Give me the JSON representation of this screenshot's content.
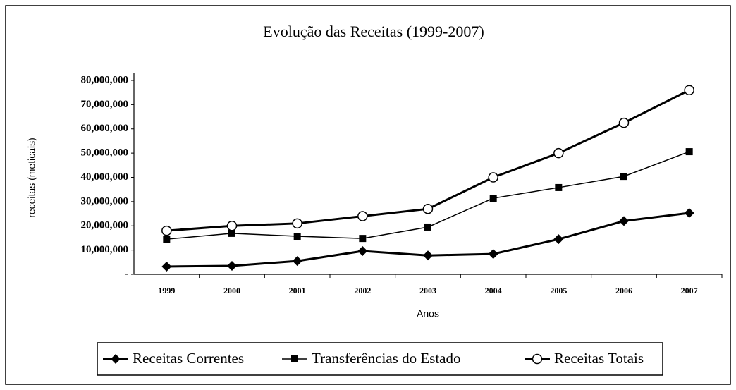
{
  "chart_data": {
    "type": "line",
    "title": "Evolução das Receitas (1999-2007)",
    "x_label": "Anos",
    "y_label": "receitas (meticais)",
    "categories": [
      "1999",
      "2000",
      "2001",
      "2002",
      "2003",
      "2004",
      "2005",
      "2006",
      "2007"
    ],
    "series": [
      {
        "name": "Receitas Correntes",
        "color": "#000000",
        "marker": "diamond",
        "values": [
          3200000,
          3500000,
          5500000,
          9600000,
          7800000,
          8400000,
          14500000,
          22000000,
          25300000
        ]
      },
      {
        "name": "Transferências do Estado",
        "color": "#000000",
        "marker": "square",
        "values": [
          14500000,
          16900000,
          15700000,
          14800000,
          19500000,
          31400000,
          35800000,
          40400000,
          50600000
        ]
      },
      {
        "name": "Receitas Totais",
        "color": "#000000",
        "marker": "circle",
        "values": [
          18000000,
          20000000,
          21000000,
          24000000,
          27000000,
          40000000,
          50000000,
          62500000,
          76000000
        ]
      }
    ],
    "ylim": [
      0,
      80000000
    ],
    "yticks": [
      {
        "value": 0,
        "label": "-"
      },
      {
        "value": 10000000,
        "label": "10,000,000"
      },
      {
        "value": 20000000,
        "label": "20,000,000"
      },
      {
        "value": 30000000,
        "label": "30,000,000"
      },
      {
        "value": 40000000,
        "label": "40,000,000"
      },
      {
        "value": 50000000,
        "label": "50,000,000"
      },
      {
        "value": 60000000,
        "label": "60,000,000"
      },
      {
        "value": 70000000,
        "label": "70,000,000"
      },
      {
        "value": 80000000,
        "label": "80,000,000"
      }
    ],
    "grid": false,
    "legend": "bottom"
  }
}
